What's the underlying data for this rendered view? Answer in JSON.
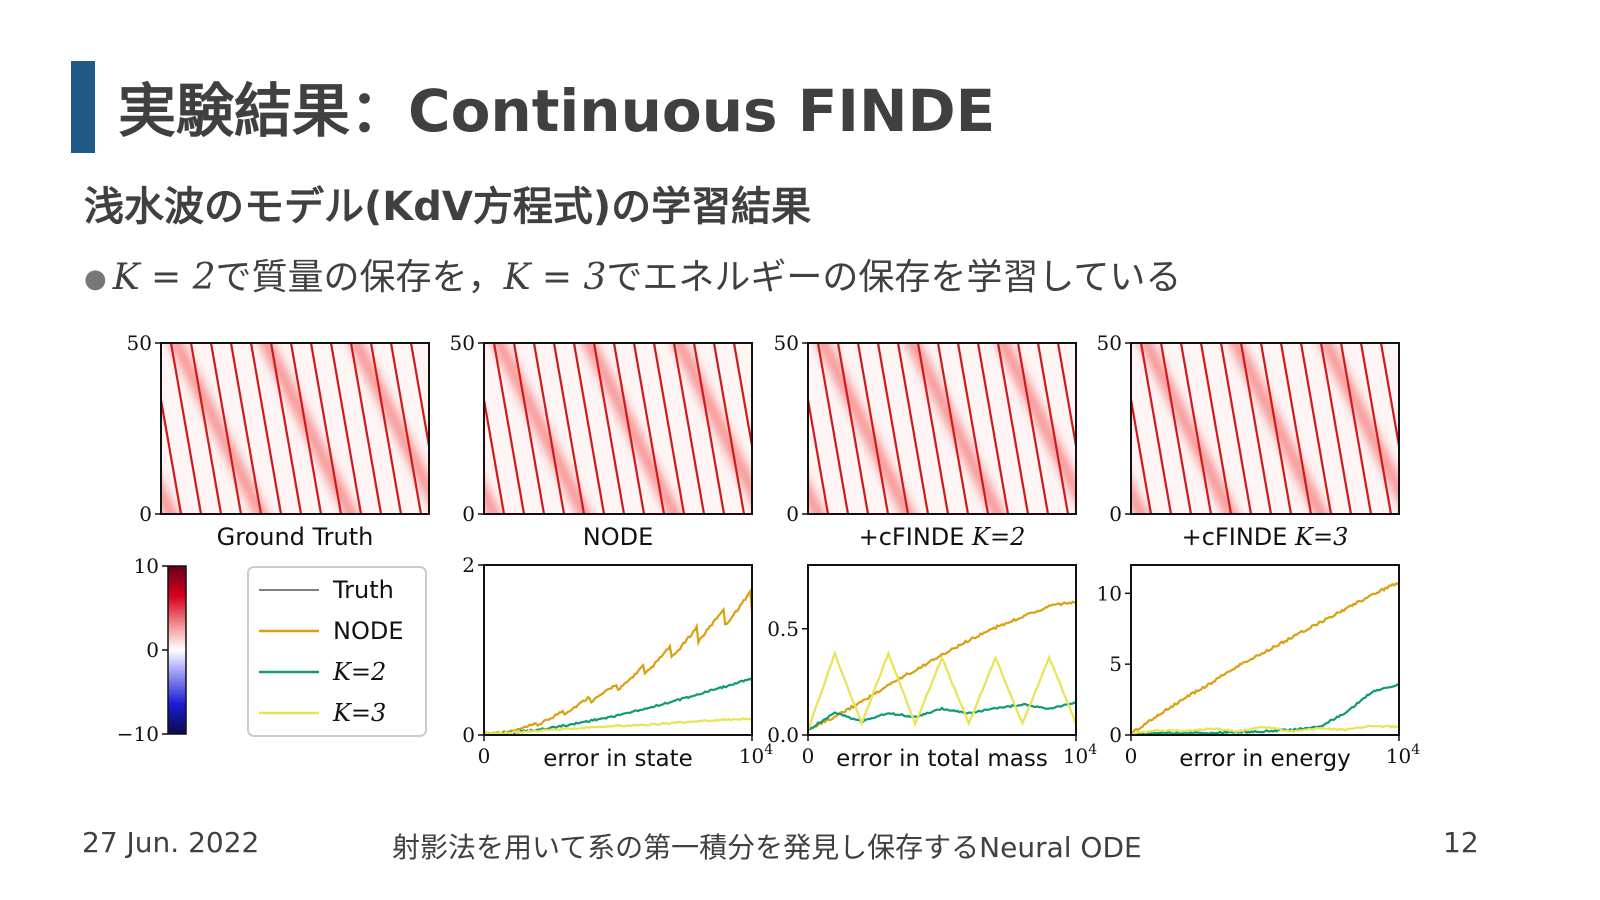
{
  "slide": {
    "title": "実験結果：Continuous FINDE",
    "subtitle": "浅水波のモデル(KdV方程式)の学習結果",
    "bullet": {
      "k_mass": "K = 2",
      "mass_text": "で質量の保存を，",
      "k_energy": "K = 3",
      "energy_text": "でエネルギーの保存を学習している"
    }
  },
  "footer": {
    "date": "27 Jun. 2022",
    "center": "射影法を用いて系の第一積分を発見し保存するNeural ODE",
    "page": "12"
  },
  "colors": {
    "accent": "#1f5b86",
    "truth": "#333333",
    "node": "#d9a011",
    "k2": "#0f9a78",
    "k3": "#e9e356"
  },
  "chart_data": [
    {
      "type": "heatmap",
      "panel": "ground-truth",
      "label": "Ground Truth",
      "ylim": [
        0,
        50
      ],
      "yticks": [
        "0",
        "50"
      ]
    },
    {
      "type": "heatmap",
      "panel": "node",
      "label": "NODE",
      "ylim": [
        0,
        50
      ],
      "yticks": [
        "0",
        "50"
      ]
    },
    {
      "type": "heatmap",
      "panel": "cfinde-k2",
      "label": "+cFINDE K=2",
      "ylim": [
        0,
        50
      ],
      "yticks": [
        "0",
        "50"
      ]
    },
    {
      "type": "heatmap",
      "panel": "cfinde-k3",
      "label": "+cFINDE K=3",
      "ylim": [
        0,
        50
      ],
      "yticks": [
        "0",
        "50"
      ]
    },
    {
      "type": "colorbar",
      "range": [
        -10,
        10
      ],
      "ticks": [
        "10",
        "0",
        "−10"
      ]
    },
    {
      "type": "legend",
      "entries": [
        "Truth",
        "NODE",
        "K = 2",
        "K = 3"
      ]
    },
    {
      "type": "line",
      "panel": "error-state",
      "xlabel": "error in state",
      "xlim": [
        0,
        10000
      ],
      "xticks": [
        "0",
        "10^4"
      ],
      "ylim": [
        0,
        2
      ],
      "yticks": [
        "0",
        "2"
      ],
      "x": [
        0,
        1000,
        2000,
        3000,
        4000,
        5000,
        6000,
        7000,
        8000,
        9000,
        10000
      ],
      "series": [
        {
          "name": "NODE",
          "values": [
            0,
            0.03,
            0.12,
            0.28,
            0.45,
            0.6,
            0.82,
            1.05,
            1.28,
            1.5,
            1.7
          ]
        },
        {
          "name": "K = 2",
          "values": [
            0,
            0.02,
            0.05,
            0.1,
            0.16,
            0.22,
            0.3,
            0.38,
            0.47,
            0.56,
            0.66
          ]
        },
        {
          "name": "K = 3",
          "values": [
            0,
            0.02,
            0.04,
            0.06,
            0.08,
            0.1,
            0.11,
            0.13,
            0.15,
            0.17,
            0.18
          ]
        }
      ]
    },
    {
      "type": "line",
      "panel": "error-mass",
      "xlabel": "error in total mass",
      "xlim": [
        0,
        10000
      ],
      "xticks": [
        "0",
        "10^4"
      ],
      "ylim": [
        0,
        0.8
      ],
      "yticks": [
        "0.0",
        "0.5"
      ],
      "x": [
        0,
        1000,
        2000,
        3000,
        4000,
        5000,
        6000,
        7000,
        8000,
        9000,
        10000
      ],
      "series": [
        {
          "name": "NODE",
          "values": [
            0.02,
            0.08,
            0.15,
            0.23,
            0.3,
            0.37,
            0.44,
            0.5,
            0.55,
            0.6,
            0.62
          ]
        },
        {
          "name": "K = 2",
          "values": [
            0.02,
            0.1,
            0.06,
            0.1,
            0.08,
            0.12,
            0.1,
            0.12,
            0.14,
            0.12,
            0.15
          ]
        },
        {
          "name": "K = 3",
          "values": [
            0.02,
            0.38,
            0.05,
            0.38,
            0.05,
            0.36,
            0.05,
            0.36,
            0.05,
            0.36,
            0.05
          ]
        }
      ]
    },
    {
      "type": "line",
      "panel": "error-energy",
      "xlabel": "error in energy",
      "xlim": [
        0,
        10000
      ],
      "xticks": [
        "0",
        "10^4"
      ],
      "ylim": [
        0,
        12
      ],
      "yticks": [
        "0",
        "5",
        "10"
      ],
      "x": [
        0,
        1000,
        2000,
        3000,
        4000,
        5000,
        6000,
        7000,
        8000,
        9000,
        10000
      ],
      "series": [
        {
          "name": "NODE",
          "values": [
            0,
            1.3,
            2.5,
            3.6,
            4.8,
            5.8,
            6.8,
            7.8,
            8.8,
            9.8,
            10.7
          ]
        },
        {
          "name": "K = 2",
          "values": [
            0,
            0.05,
            0.1,
            0.1,
            0.15,
            0.2,
            0.3,
            0.5,
            1.5,
            3.0,
            3.5
          ]
        },
        {
          "name": "K = 3",
          "values": [
            0,
            0.3,
            0.2,
            0.4,
            0.2,
            0.5,
            0.2,
            0.4,
            0.3,
            0.6,
            0.5
          ]
        }
      ]
    }
  ]
}
